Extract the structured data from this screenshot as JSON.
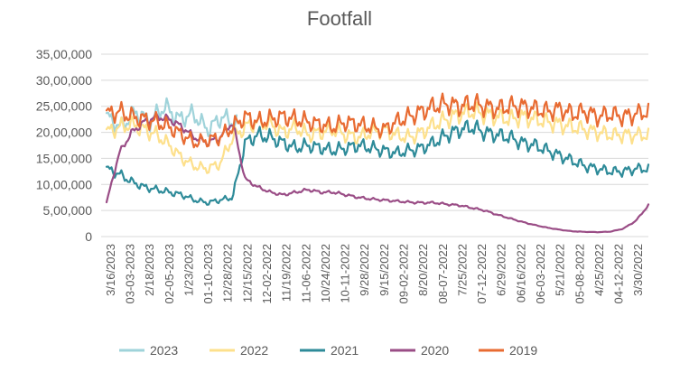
{
  "chart_data": {
    "type": "line",
    "title": "Footfall",
    "xlabel": "",
    "ylabel": "",
    "ylim": [
      0,
      3500000
    ],
    "y_ticks": [
      {
        "value": 3500000,
        "label": "35,00,000"
      },
      {
        "value": 3000000,
        "label": "30,00,000"
      },
      {
        "value": 2500000,
        "label": "25,00,000"
      },
      {
        "value": 2000000,
        "label": "20,00,000"
      },
      {
        "value": 1500000,
        "label": "15,00,000"
      },
      {
        "value": 1000000,
        "label": "10,00,000"
      },
      {
        "value": 500000,
        "label": "5,00,000"
      },
      {
        "value": 0,
        "label": "0"
      }
    ],
    "x_tick_labels": [
      "3/16/2023",
      "03-03-2023",
      "2/18/2023",
      "02-05-2023",
      "1/23/2023",
      "01-10-2023",
      "12/28/2022",
      "12/15/2022",
      "12-02-2022",
      "11/19/2022",
      "11-06-2022",
      "10/24/2022",
      "10-11-2022",
      "9/28/2022",
      "9/15/2022",
      "09-02-2022",
      "8/20/2022",
      "08-07-2022",
      "7/25/2022",
      "07-12-2022",
      "6/29/2022",
      "06/16/2022",
      "06-03-2022",
      "5/21/2022",
      "05-08-2022",
      "4/25/2022",
      "04-12-2022",
      "3/30/2022"
    ],
    "grid": true,
    "legend_position": "bottom",
    "series": [
      {
        "name": "2023",
        "color": "#9fd3da",
        "values": [
          2300000,
          2100000,
          2400000,
          2200000,
          2500000,
          2250000,
          2350000,
          2050000,
          2300000,
          2150000
        ]
      },
      {
        "name": "2022",
        "color": "#fde08c",
        "values": [
          2000000,
          2100000,
          2150000,
          2050000,
          1950000,
          1750000,
          1500000,
          1350000,
          1300000,
          1400000,
          1900000,
          2100000,
          2200000,
          2150000,
          2000000,
          2100000,
          1950000,
          2000000,
          2050000,
          1950000,
          1900000,
          2000000,
          2050000,
          1950000,
          1900000,
          2000000,
          2150000,
          2250000,
          2350000,
          2400000,
          2350000,
          2300000,
          2250000,
          2300000,
          2250000,
          2200000,
          2150000,
          2100000,
          2050000,
          2000000,
          1950000,
          1950000,
          1950000,
          1950000
        ]
      },
      {
        "name": "2021",
        "color": "#2e8b99",
        "values": [
          1300000,
          1200000,
          1050000,
          950000,
          900000,
          850000,
          800000,
          700000,
          650000,
          700000,
          750000,
          1800000,
          1950000,
          1900000,
          1800000,
          1700000,
          1750000,
          1700000,
          1650000,
          1700000,
          1750000,
          1700000,
          1650000,
          1600000,
          1650000,
          1700000,
          1800000,
          1950000,
          2050000,
          2100000,
          2000000,
          1950000,
          1900000,
          1800000,
          1750000,
          1650000,
          1550000,
          1450000,
          1350000,
          1300000,
          1250000,
          1250000,
          1300000,
          1300000
        ]
      },
      {
        "name": "2020",
        "color": "#9a4d86",
        "values": [
          650000,
          1600000,
          2000000,
          2200000,
          2300000,
          2250000,
          2100000,
          1900000,
          1800000,
          1900000,
          2200000,
          1100000,
          950000,
          850000,
          800000,
          850000,
          900000,
          850000,
          850000,
          800000,
          750000,
          720000,
          700000,
          680000,
          660000,
          650000,
          650000,
          620000,
          600000,
          550000,
          500000,
          420000,
          350000,
          280000,
          220000,
          170000,
          130000,
          100000,
          90000,
          85000,
          95000,
          150000,
          300000,
          600000
        ]
      },
      {
        "name": "2019",
        "color": "#e86b32",
        "values": [
          2350000,
          2400000,
          2300000,
          2250000,
          2200000,
          2100000,
          1950000,
          1800000,
          1850000,
          1900000,
          2100000,
          2300000,
          2200000,
          2250000,
          2300000,
          2250000,
          2200000,
          2150000,
          2100000,
          2200000,
          2150000,
          2100000,
          2050000,
          2200000,
          2300000,
          2400000,
          2500000,
          2550000,
          2500000,
          2550000,
          2500000,
          2450000,
          2500000,
          2500000,
          2450000,
          2400000,
          2450000,
          2350000,
          2400000,
          2300000,
          2350000,
          2300000,
          2350000,
          2400000
        ]
      }
    ]
  }
}
